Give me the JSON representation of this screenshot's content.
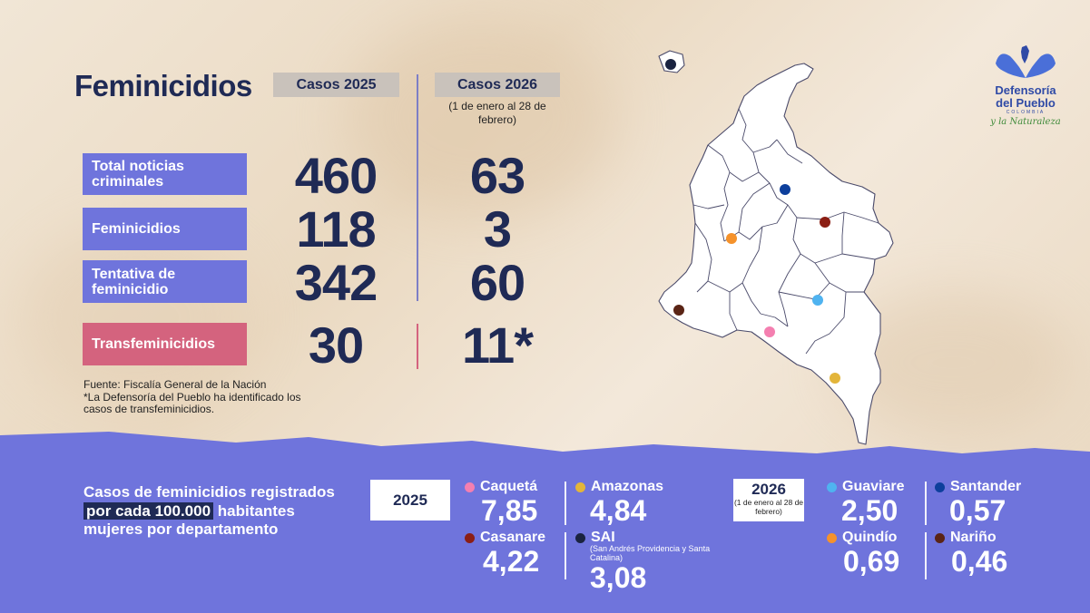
{
  "title": "Feminicidios",
  "headers": {
    "col2025": "Casos 2025",
    "col2026": "Casos 2026",
    "col2026_sub": "(1 de enero al 28 de febrero)"
  },
  "rows": [
    {
      "label": "Total noticias criminales",
      "v2025": "460",
      "v2026": "63"
    },
    {
      "label": "Feminicidios",
      "v2025": "118",
      "v2026": "3"
    },
    {
      "label": "Tentativa de feminicidio",
      "v2025": "342",
      "v2026": "60"
    },
    {
      "label": "Transfeminicidios",
      "v2025": "30",
      "v2026": "11*"
    }
  ],
  "source": {
    "line1": "Fuente: Fiscalía General de la Nación",
    "line2": "*La Defensoría del Pueblo ha identificado los casos de transfeminicidios."
  },
  "rate_section": {
    "text_a": "Casos de feminicidios registrados ",
    "text_highlight": "por cada 100.000",
    "text_b": " habitantes mujeres por departamento"
  },
  "year2025": {
    "label": "2025",
    "items": [
      {
        "name": "Caquetá",
        "value": "7,85",
        "color": "#f47fb0"
      },
      {
        "name": "Amazonas",
        "value": "4,84",
        "color": "#e3b53a"
      },
      {
        "name": "Casanare",
        "value": "4,22",
        "color": "#8b1e14"
      },
      {
        "name": "SAI",
        "note": "(San Andrés Providencia y Santa Catalina)",
        "value": "3,08",
        "color": "#1a2340"
      }
    ]
  },
  "year2026": {
    "label": "2026",
    "sub": "(1 de enero al 28 de febrero)",
    "items": [
      {
        "name": "Guaviare",
        "value": "2,50",
        "color": "#4fb3f0"
      },
      {
        "name": "Santander",
        "value": "0,57",
        "color": "#0d3f9c"
      },
      {
        "name": "Quindío",
        "value": "0,69",
        "color": "#f5922b"
      },
      {
        "name": "Nariño",
        "value": "0,46",
        "color": "#5a2415"
      }
    ]
  },
  "logo": {
    "line1": "Defensoría",
    "line2": "del Pueblo",
    "country": "COLOMBIA",
    "tagline": "y la Naturaleza"
  },
  "colors": {
    "navy": "#1f2a55",
    "label_blue": "#6f74dc",
    "label_pink": "#d4637e",
    "band": "#6f74dc"
  }
}
